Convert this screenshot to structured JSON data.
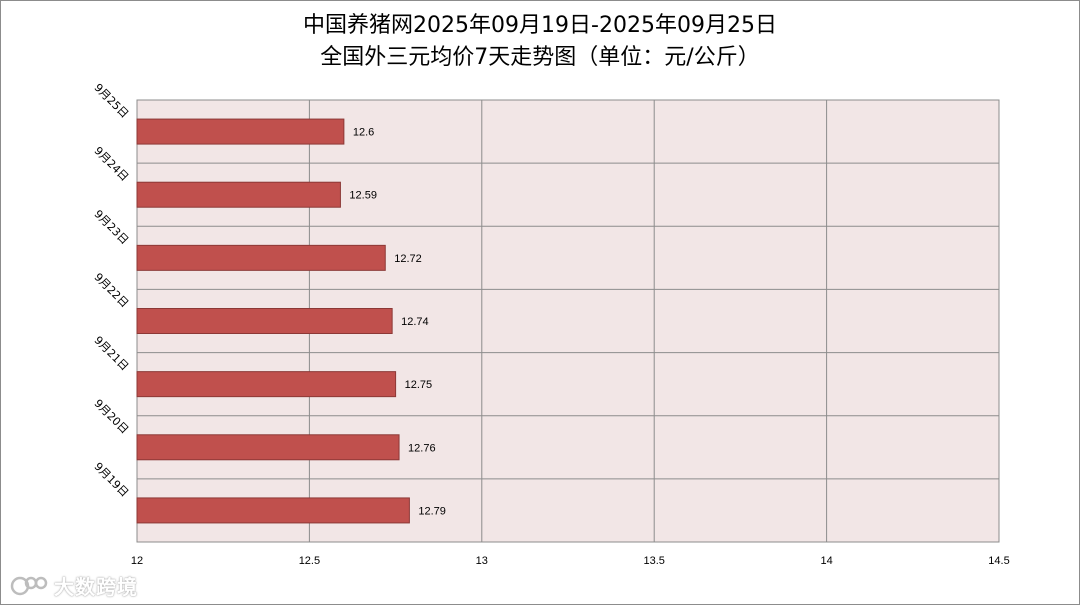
{
  "title_line1": "中国养猪网2025年09月19日-2025年09月25日",
  "title_line2": "全国外三元均价7天走势图（单位：元/公斤）",
  "watermark": "大数跨境",
  "colors": {
    "bar_fill": "#c0504d",
    "bar_stroke": "#8c3836",
    "plot_bg": "#f2e6e6",
    "grid": "#8c8c8c"
  },
  "chart_data": {
    "type": "bar",
    "orientation": "horizontal",
    "categories": [
      "9月25日",
      "9月24日",
      "9月23日",
      "9月22日",
      "9月21日",
      "9月20日",
      "9月19日"
    ],
    "values": [
      12.6,
      12.59,
      12.72,
      12.74,
      12.75,
      12.76,
      12.79
    ],
    "data_labels": [
      "12.6",
      "12.59",
      "12.72",
      "12.74",
      "12.75",
      "12.76",
      "12.79"
    ],
    "xlim": [
      12,
      14.5
    ],
    "xticks": [
      12,
      12.5,
      13,
      13.5,
      14,
      14.5
    ],
    "xtick_labels": [
      "12",
      "12.5",
      "13",
      "13.5",
      "14",
      "14.5"
    ],
    "grid": true,
    "legend": false
  }
}
